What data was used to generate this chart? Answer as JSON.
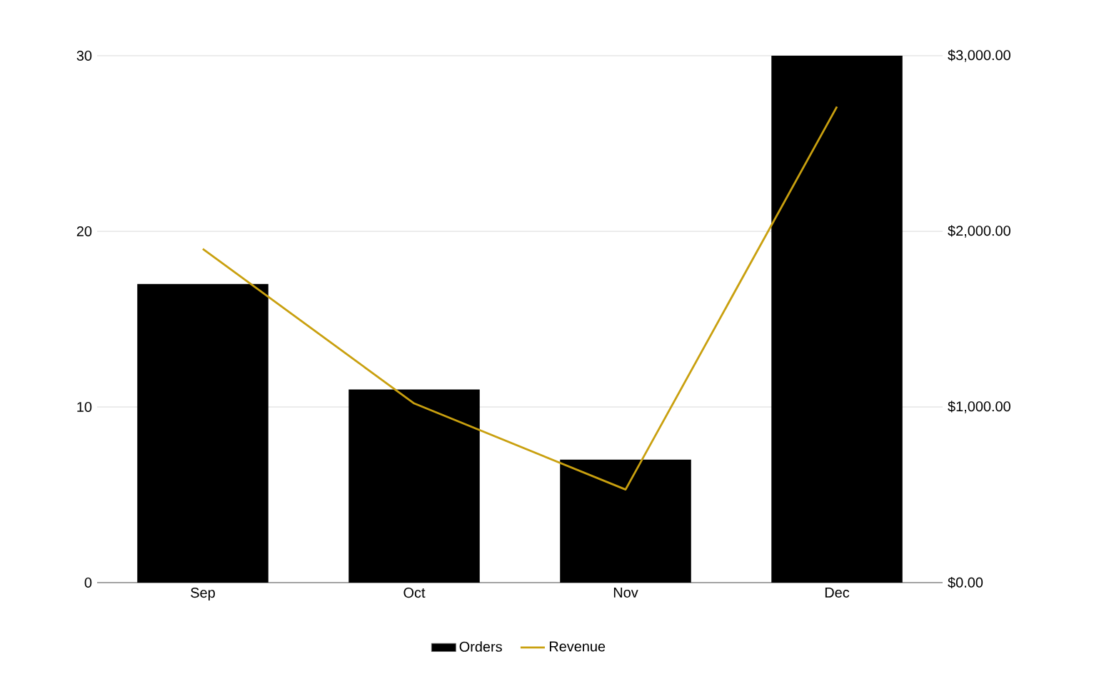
{
  "chart_data": {
    "type": "bar",
    "categories": [
      "Sep",
      "Oct",
      "Nov",
      "Dec"
    ],
    "series": [
      {
        "name": "Orders",
        "color": "#000000",
        "values": [
          17,
          11,
          7,
          30
        ]
      },
      {
        "name": "Revenue",
        "type": "line",
        "axis": "y2",
        "color": "#c9a00f",
        "values": [
          1900,
          1020,
          530,
          2710
        ]
      }
    ],
    "ylim": [
      0,
      30
    ],
    "yticks": [
      0,
      10,
      20,
      30
    ],
    "y2lim": [
      0,
      3000
    ],
    "y2ticks": [
      {
        "value": 0,
        "label": "$0.00"
      },
      {
        "value": 1000,
        "label": "$1,000.00"
      },
      {
        "value": 2000,
        "label": "$2,000.00"
      },
      {
        "value": 3000,
        "label": "$3,000.00"
      }
    ],
    "grid": "y",
    "legend": "bottom",
    "line_style": "solid"
  }
}
